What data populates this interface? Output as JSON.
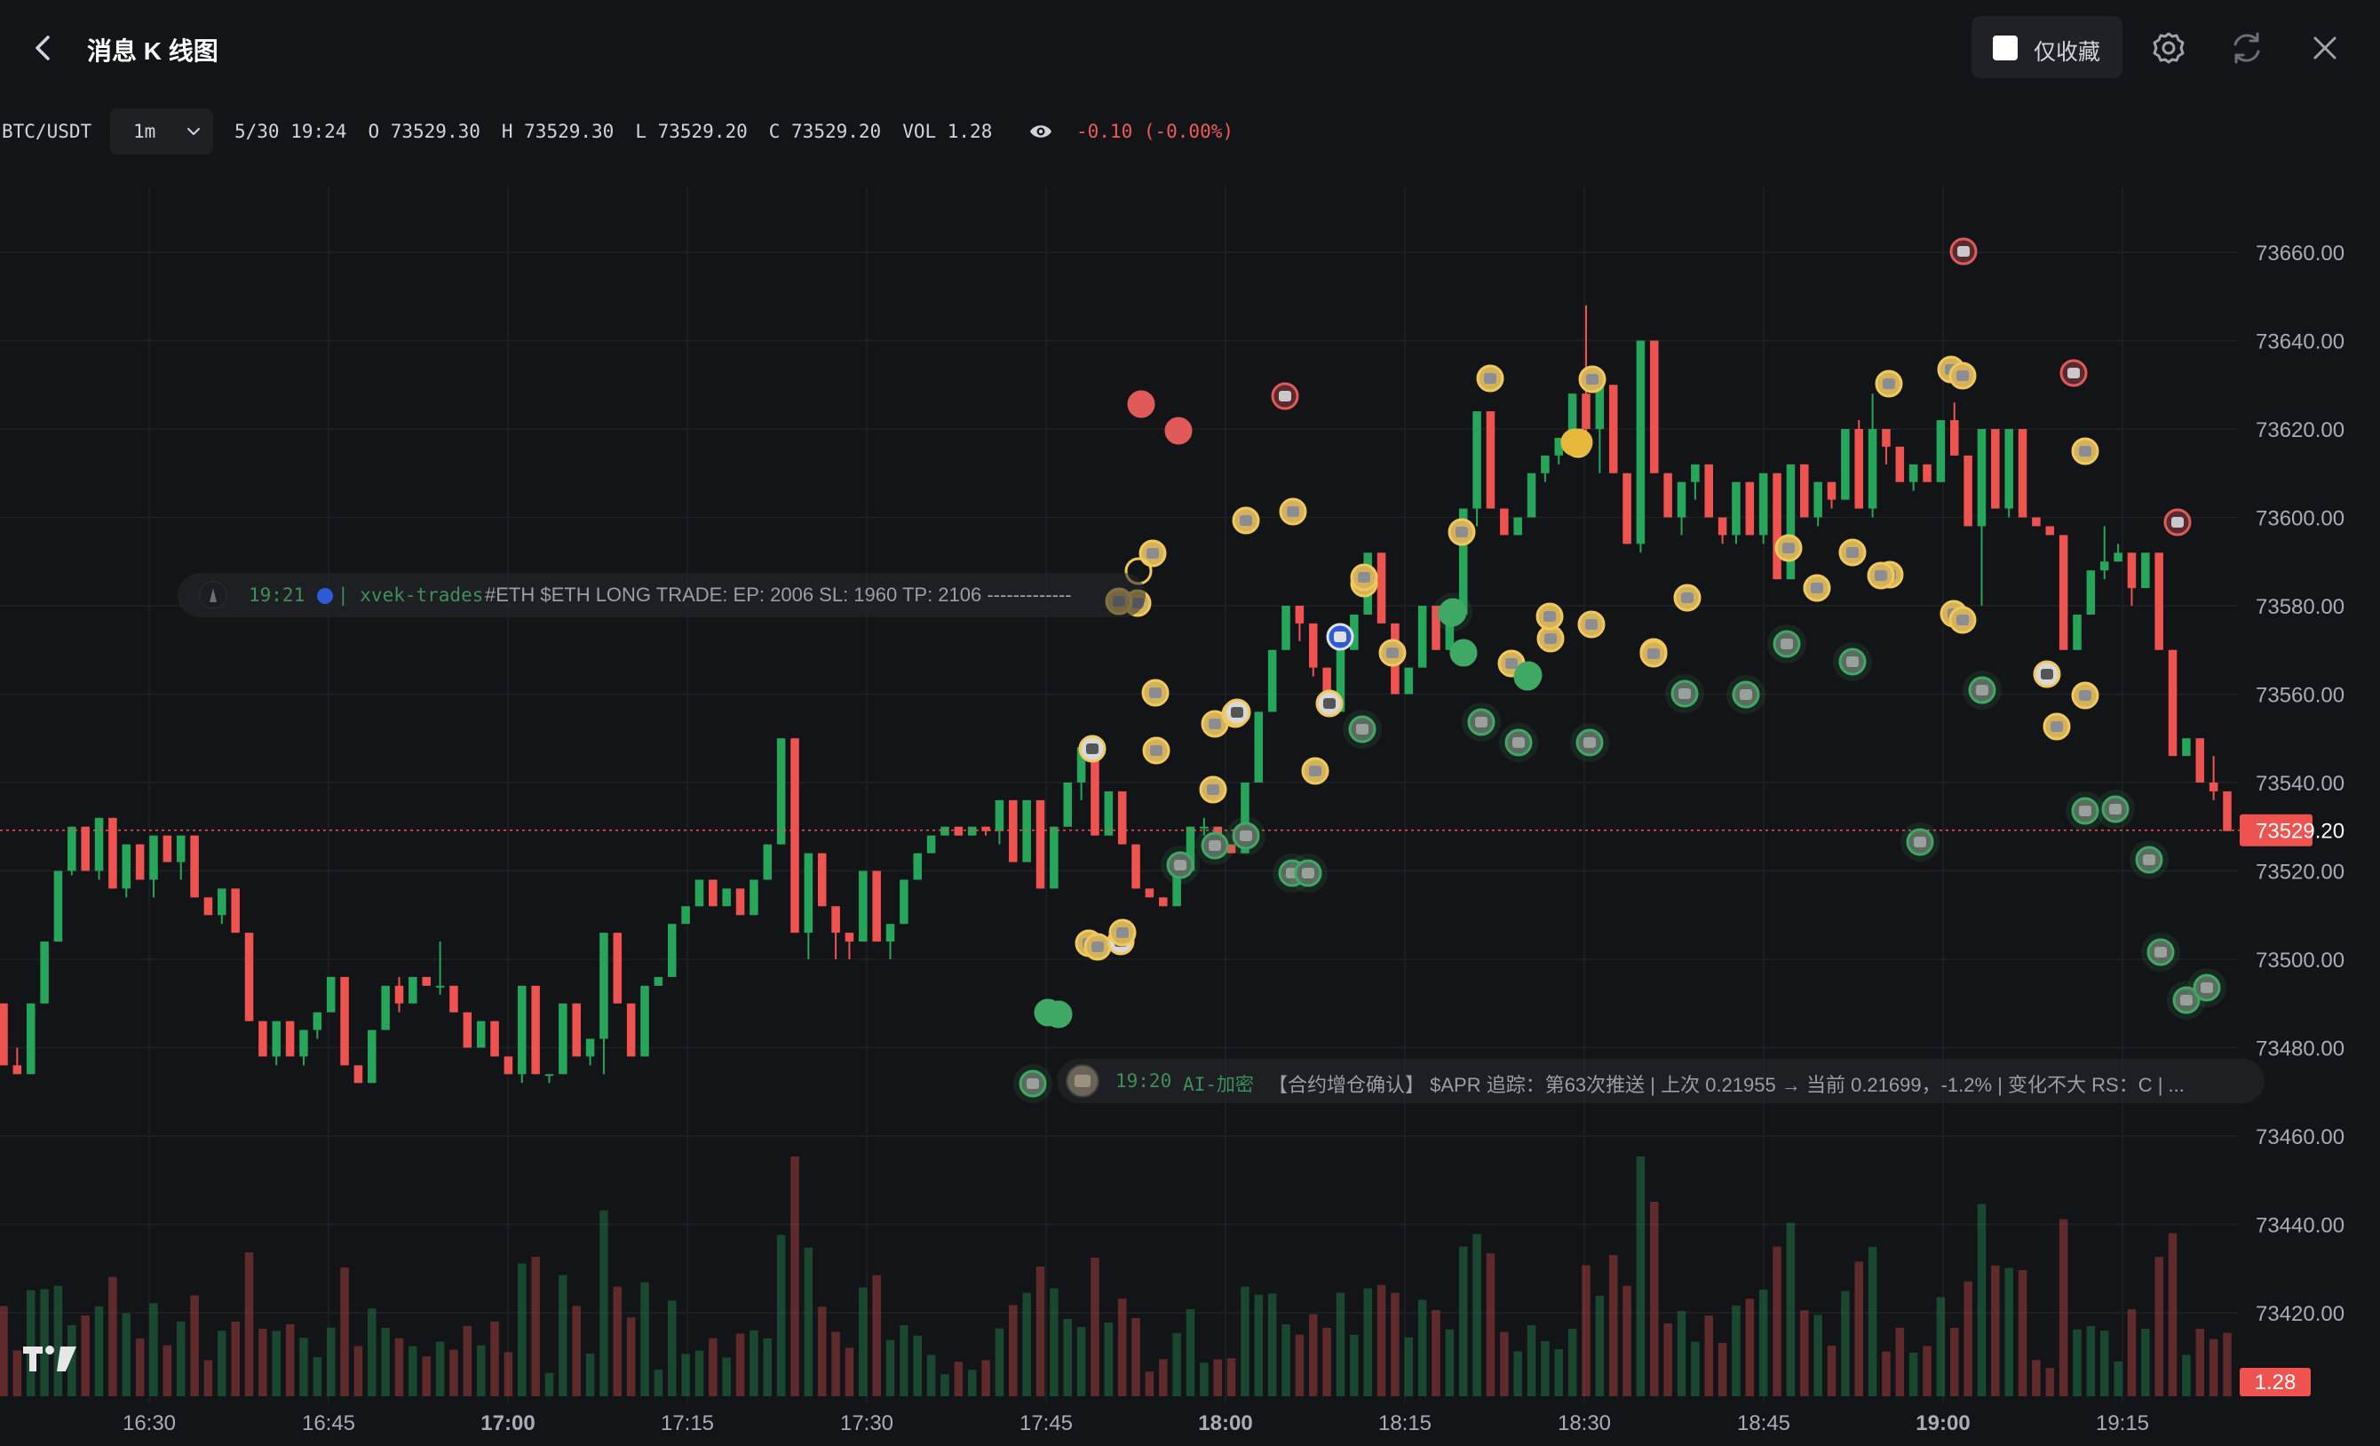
{
  "header": {
    "title": "消息 K 线图",
    "favorites_only_label": "仅收藏",
    "icons": [
      "chevron-left-icon",
      "gear-icon",
      "refresh-icon",
      "close-icon"
    ]
  },
  "infobar": {
    "symbol": "BTC/USDT",
    "interval": "1m",
    "datetime": "5/30 19:24",
    "open": "O 73529.30",
    "high": "H 73529.30",
    "low": "L 73529.20",
    "close": "C 73529.20",
    "volume": "VOL 1.28",
    "change": "-0.10 (-0.00%)"
  },
  "messages": [
    {
      "time": "19:21",
      "source": "| xvek-trades",
      "text": "#ETH $ETH LONG TRADE: EP: 2006 SL: 1960 TP: 2106 -------------"
    },
    {
      "time": "19:20",
      "source": "AI-加密",
      "text": "【合约增仓确认】 $APR 追踪：第63次推送 | 上次 0.21955 → 当前 0.21699，-1.2% | 变化不大 RS：C | ..."
    }
  ],
  "chart_data": {
    "type": "candlestick",
    "symbol": "BTC/USDT",
    "interval": "1m",
    "y_ticks": [
      73660,
      73640,
      73620,
      73600,
      73580,
      73560,
      73540,
      73520,
      73500,
      73480,
      73460,
      73440,
      73420
    ],
    "y_tick_labels": [
      "73660.00",
      "73640.00",
      "73620.00",
      "73600.00",
      "73580.00",
      "73560.00",
      "73540.00",
      "73520.00",
      "73500.00",
      "73480.00",
      "73460.00",
      "73440.00",
      "73420.00"
    ],
    "ylim": [
      73404,
      73688
    ],
    "x_tick_labels": [
      "16:30",
      "16:45",
      "17:00",
      "17:15",
      "17:30",
      "17:45",
      "18:00",
      "18:15",
      "18:30",
      "18:45",
      "19:00",
      "19:15"
    ],
    "x_ticks_bold": [
      "17:00",
      "18:00",
      "19:00"
    ],
    "current_price": 73529.2,
    "current_price_label": "73529.20",
    "current_volume_label": "1.28",
    "grid": true,
    "colors": {
      "up": "#26a65b",
      "down": "#ef5350",
      "price_line": "#ef5350",
      "background": "#131417"
    },
    "candles": [
      [
        73490,
        73490,
        73476,
        73476
      ],
      [
        73476,
        73480,
        73474,
        73474
      ],
      [
        73474,
        73490,
        73474,
        73490
      ],
      [
        73490,
        73504,
        73490,
        73504
      ],
      [
        73504,
        73520,
        73504,
        73520
      ],
      [
        73520,
        73530,
        73519,
        73530
      ],
      [
        73530,
        73530,
        73520,
        73520
      ],
      [
        73520,
        73532,
        73518,
        73532
      ],
      [
        73532,
        73532,
        73516,
        73516
      ],
      [
        73516,
        73526,
        73514,
        73526
      ],
      [
        73526,
        73526,
        73518,
        73518
      ],
      [
        73518,
        73528,
        73514,
        73528
      ],
      [
        73528,
        73528,
        73522,
        73522
      ],
      [
        73522,
        73528,
        73518,
        73528
      ],
      [
        73528,
        73528,
        73514,
        73514
      ],
      [
        73514,
        73514,
        73510,
        73510
      ],
      [
        73510,
        73516,
        73508,
        73516
      ],
      [
        73516,
        73516,
        73506,
        73506
      ],
      [
        73506,
        73506,
        73486,
        73486
      ],
      [
        73486,
        73486,
        73478,
        73478
      ],
      [
        73478,
        73486,
        73476,
        73486
      ],
      [
        73486,
        73486,
        73478,
        73478
      ],
      [
        73478,
        73484,
        73476,
        73484
      ],
      [
        73484,
        73488,
        73482,
        73488
      ],
      [
        73488,
        73496,
        73488,
        73496
      ],
      [
        73496,
        73496,
        73476,
        73476
      ],
      [
        73476,
        73476,
        73472,
        73472
      ],
      [
        73472,
        73484,
        73472,
        73484
      ],
      [
        73484,
        73494,
        73484,
        73494
      ],
      [
        73494,
        73496,
        73488,
        73490
      ],
      [
        73490,
        73496,
        73490,
        73496
      ],
      [
        73496,
        73496,
        73494,
        73494
      ],
      [
        73494,
        73504,
        73492,
        73494
      ],
      [
        73494,
        73494,
        73488,
        73488
      ],
      [
        73488,
        73488,
        73480,
        73480
      ],
      [
        73480,
        73486,
        73480,
        73486
      ],
      [
        73486,
        73486,
        73478,
        73478
      ],
      [
        73478,
        73478,
        73474,
        73474
      ],
      [
        73474,
        73494,
        73472,
        73494
      ],
      [
        73494,
        73494,
        73474,
        73474
      ],
      [
        73474,
        73474,
        73472,
        73474
      ],
      [
        73474,
        73490,
        73474,
        73490
      ],
      [
        73490,
        73490,
        73478,
        73478
      ],
      [
        73478,
        73482,
        73476,
        73482
      ],
      [
        73482,
        73506,
        73474,
        73506
      ],
      [
        73506,
        73506,
        73490,
        73490
      ],
      [
        73490,
        73490,
        73478,
        73478
      ],
      [
        73478,
        73494,
        73478,
        73494
      ],
      [
        73494,
        73496,
        73494,
        73496
      ],
      [
        73496,
        73508,
        73496,
        73508
      ],
      [
        73508,
        73512,
        73508,
        73512
      ],
      [
        73512,
        73518,
        73512,
        73518
      ],
      [
        73518,
        73518,
        73512,
        73512
      ],
      [
        73512,
        73516,
        73512,
        73516
      ],
      [
        73516,
        73516,
        73510,
        73510
      ],
      [
        73510,
        73518,
        73510,
        73518
      ],
      [
        73518,
        73526,
        73518,
        73526
      ],
      [
        73526,
        73550,
        73526,
        73550
      ],
      [
        73550,
        73550,
        73506,
        73506
      ],
      [
        73506,
        73524,
        73500,
        73524
      ],
      [
        73524,
        73524,
        73512,
        73512
      ],
      [
        73512,
        73512,
        73500,
        73506
      ],
      [
        73506,
        73506,
        73500,
        73504
      ],
      [
        73504,
        73520,
        73504,
        73520
      ],
      [
        73520,
        73520,
        73504,
        73504
      ],
      [
        73504,
        73508,
        73500,
        73508
      ],
      [
        73508,
        73518,
        73508,
        73518
      ],
      [
        73518,
        73524,
        73518,
        73524
      ],
      [
        73524,
        73528,
        73524,
        73528
      ],
      [
        73528,
        73530,
        73528,
        73530
      ],
      [
        73530,
        73530,
        73528,
        73528
      ],
      [
        73528,
        73530,
        73528,
        73530
      ],
      [
        73530,
        73530,
        73528,
        73529
      ],
      [
        73529,
        73536,
        73526,
        73536
      ],
      [
        73536,
        73536,
        73522,
        73522
      ],
      [
        73522,
        73536,
        73522,
        73536
      ],
      [
        73536,
        73536,
        73516,
        73516
      ],
      [
        73516,
        73530,
        73516,
        73530
      ],
      [
        73530,
        73540,
        73530,
        73540
      ],
      [
        73540,
        73548,
        73536,
        73548
      ],
      [
        73548,
        73548,
        73528,
        73528
      ],
      [
        73528,
        73538,
        73528,
        73538
      ],
      [
        73538,
        73538,
        73526,
        73526
      ],
      [
        73526,
        73526,
        73516,
        73516
      ],
      [
        73516,
        73516,
        73514,
        73514
      ],
      [
        73514,
        73514,
        73512,
        73512
      ],
      [
        73512,
        73520,
        73512,
        73520
      ],
      [
        73520,
        73530,
        73520,
        73530
      ],
      [
        73530,
        73532,
        73528,
        73530
      ],
      [
        73530,
        73530,
        73526,
        73526
      ],
      [
        73526,
        73526,
        73524,
        73524
      ],
      [
        73524,
        73540,
        73524,
        73540
      ],
      [
        73540,
        73556,
        73540,
        73556
      ],
      [
        73556,
        73570,
        73556,
        73570
      ],
      [
        73570,
        73580,
        73570,
        73580
      ],
      [
        73580,
        73580,
        73572,
        73576
      ],
      [
        73576,
        73576,
        73564,
        73566
      ],
      [
        73566,
        73566,
        73556,
        73556
      ],
      [
        73556,
        73570,
        73556,
        73570
      ],
      [
        73570,
        73578,
        73570,
        73578
      ],
      [
        73578,
        73592,
        73578,
        73592
      ],
      [
        73592,
        73592,
        73576,
        73576
      ],
      [
        73576,
        73576,
        73560,
        73560
      ],
      [
        73560,
        73566,
        73560,
        73566
      ],
      [
        73566,
        73580,
        73566,
        73580
      ],
      [
        73580,
        73580,
        73570,
        73570
      ],
      [
        73570,
        73578,
        73570,
        73578
      ],
      [
        73578,
        73602,
        73578,
        73602
      ],
      [
        73602,
        73624,
        73598,
        73624
      ],
      [
        73624,
        73624,
        73602,
        73602
      ],
      [
        73602,
        73602,
        73596,
        73596
      ],
      [
        73596,
        73600,
        73596,
        73600
      ],
      [
        73600,
        73610,
        73600,
        73610
      ],
      [
        73610,
        73614,
        73608,
        73614
      ],
      [
        73614,
        73618,
        73612,
        73618
      ],
      [
        73618,
        73628,
        73618,
        73628
      ],
      [
        73628,
        73648,
        73618,
        73620
      ],
      [
        73620,
        73630,
        73610,
        73630
      ],
      [
        73630,
        73630,
        73610,
        73610
      ],
      [
        73610,
        73610,
        73594,
        73594
      ],
      [
        73594,
        73640,
        73592,
        73640
      ],
      [
        73640,
        73640,
        73610,
        73610
      ],
      [
        73610,
        73610,
        73600,
        73600
      ],
      [
        73600,
        73608,
        73596,
        73608
      ],
      [
        73608,
        73612,
        73604,
        73612
      ],
      [
        73612,
        73612,
        73600,
        73600
      ],
      [
        73600,
        73600,
        73594,
        73596
      ],
      [
        73596,
        73608,
        73594,
        73608
      ],
      [
        73608,
        73608,
        73596,
        73596
      ],
      [
        73596,
        73610,
        73594,
        73610
      ],
      [
        73610,
        73610,
        73586,
        73586
      ],
      [
        73586,
        73612,
        73586,
        73612
      ],
      [
        73612,
        73612,
        73600,
        73600
      ],
      [
        73600,
        73608,
        73598,
        73608
      ],
      [
        73608,
        73608,
        73602,
        73604
      ],
      [
        73604,
        73620,
        73604,
        73620
      ],
      [
        73620,
        73622,
        73602,
        73602
      ],
      [
        73602,
        73628,
        73600,
        73620
      ],
      [
        73620,
        73620,
        73612,
        73616
      ],
      [
        73616,
        73616,
        73608,
        73608
      ],
      [
        73608,
        73612,
        73606,
        73612
      ],
      [
        73612,
        73612,
        73608,
        73608
      ],
      [
        73608,
        73622,
        73608,
        73622
      ],
      [
        73622,
        73626,
        73614,
        73614
      ],
      [
        73614,
        73614,
        73598,
        73598
      ],
      [
        73598,
        73620,
        73580,
        73620
      ],
      [
        73620,
        73620,
        73602,
        73602
      ],
      [
        73602,
        73620,
        73600,
        73620
      ],
      [
        73620,
        73620,
        73600,
        73600
      ],
      [
        73600,
        73600,
        73598,
        73598
      ],
      [
        73598,
        73598,
        73596,
        73596
      ],
      [
        73596,
        73596,
        73570,
        73570
      ],
      [
        73570,
        73578,
        73570,
        73578
      ],
      [
        73578,
        73588,
        73578,
        73588
      ],
      [
        73588,
        73598,
        73586,
        73590
      ],
      [
        73590,
        73594,
        73590,
        73592
      ],
      [
        73592,
        73592,
        73580,
        73584
      ],
      [
        73584,
        73592,
        73584,
        73592
      ],
      [
        73592,
        73592,
        73570,
        73570
      ],
      [
        73570,
        73570,
        73546,
        73546
      ],
      [
        73546,
        73550,
        73546,
        73550
      ],
      [
        73550,
        73550,
        73540,
        73540
      ],
      [
        73540,
        73546,
        73536,
        73538
      ],
      [
        73538,
        73538,
        73530,
        73529
      ]
    ],
    "volume_label_axis": "volume pane (unlabeled)"
  }
}
